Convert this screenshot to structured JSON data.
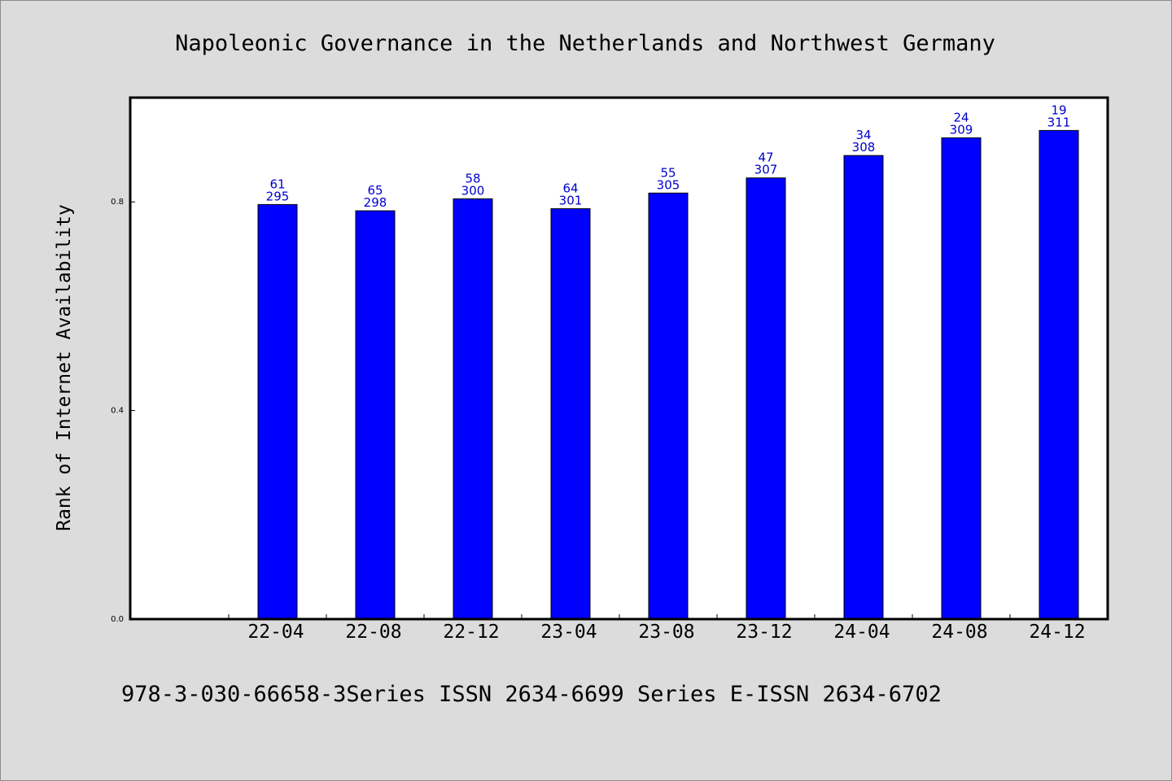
{
  "chart_data": {
    "type": "bar",
    "title": "Napoleonic Governance in the Netherlands and Northwest Germany",
    "xlabel": "",
    "ylabel": "Rank of Internet Availability",
    "categories": [
      "22-04",
      "22-08",
      "22-12",
      "23-04",
      "23-08",
      "23-12",
      "24-04",
      "24-08",
      "24-12"
    ],
    "values": [
      0.795,
      0.783,
      0.806,
      0.787,
      0.817,
      0.846,
      0.889,
      0.923,
      0.937
    ],
    "bar_labels": [
      [
        "61",
        "295"
      ],
      [
        "65",
        "298"
      ],
      [
        "58",
        "300"
      ],
      [
        "64",
        "301"
      ],
      [
        "55",
        "305"
      ],
      [
        "47",
        "307"
      ],
      [
        "34",
        "308"
      ],
      [
        "24",
        "309"
      ],
      [
        "19",
        "311"
      ]
    ],
    "yticks": [
      {
        "value": 0.0,
        "label": "0.0"
      },
      {
        "value": 0.4,
        "label": "0.4"
      },
      {
        "value": 0.8,
        "label": "0.8"
      }
    ],
    "ylim": [
      0,
      1.0
    ],
    "grid": false,
    "legend": "none",
    "bar_color": "#0000ff",
    "label_color": "#0000cc",
    "background": "#dcdcdc",
    "plot_background": "#ffffff"
  },
  "footer": {
    "text": "978-3-030-66658-3Series ISSN 2634-6699 Series E-ISSN 2634-6702"
  }
}
